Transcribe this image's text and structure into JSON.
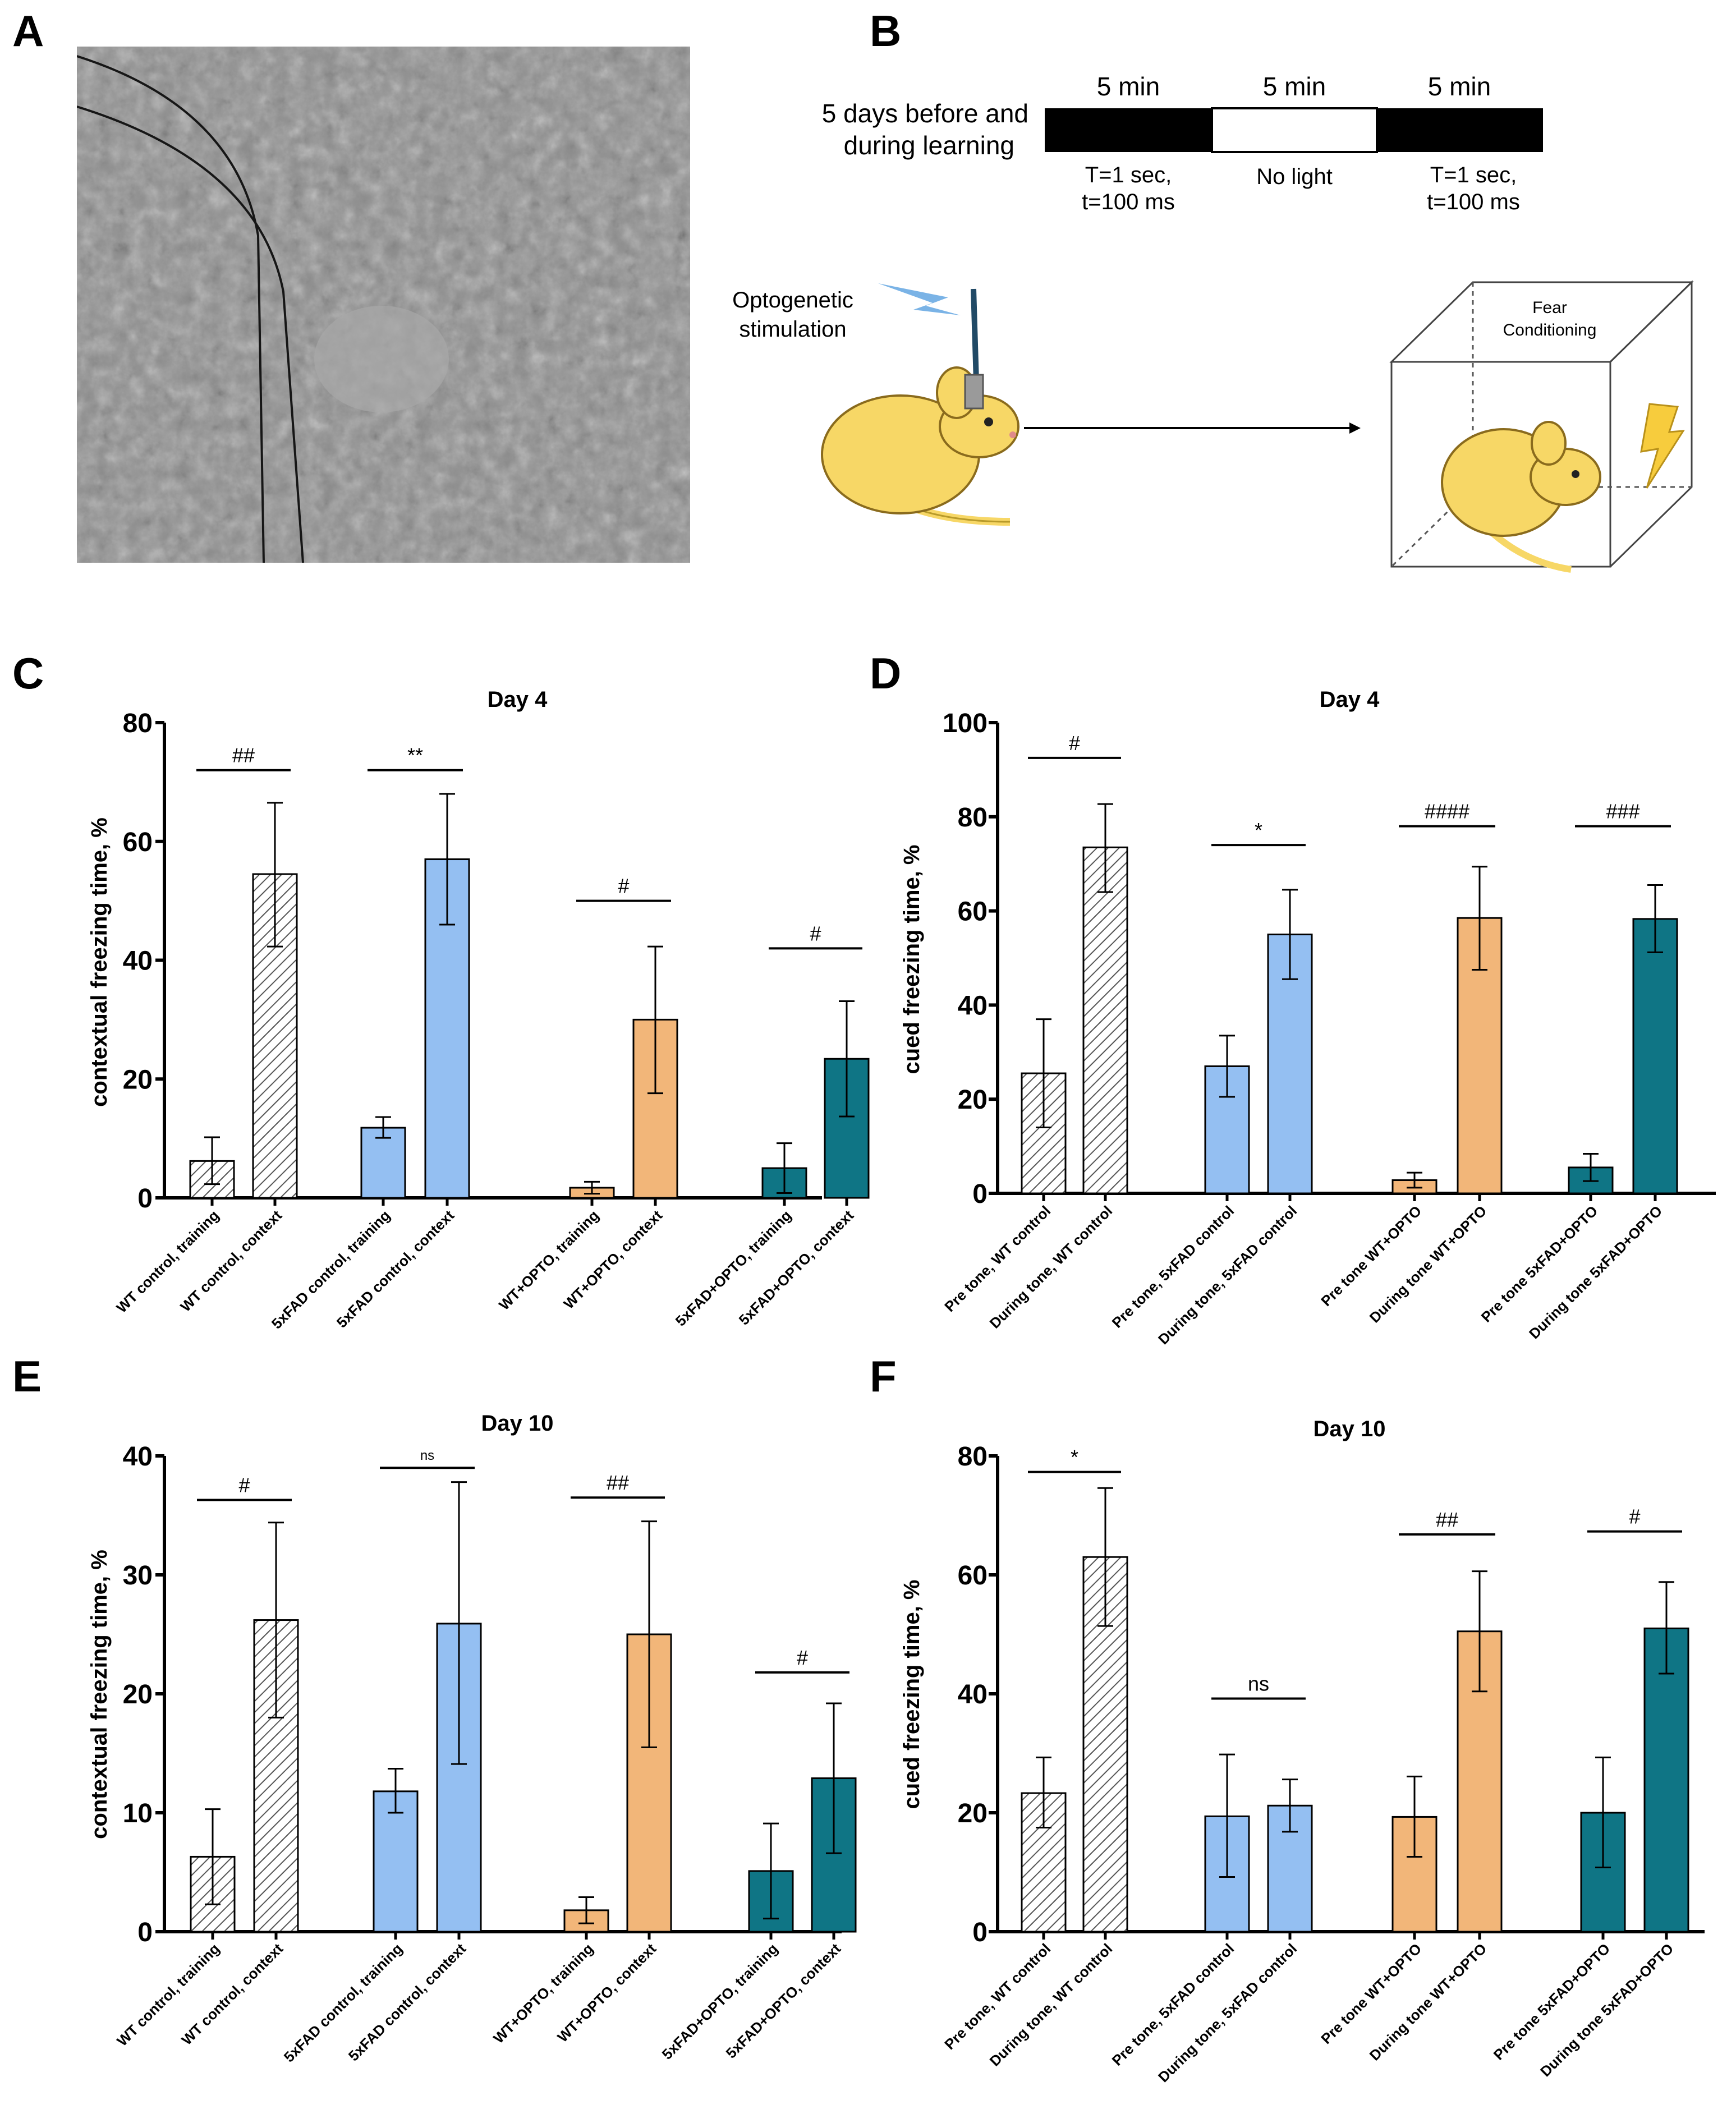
{
  "colors": {
    "wt_control": "#a9a9a9",
    "fad_control": "#94bff2",
    "wt_opto": "#f2b679",
    "fad_opto": "#0f7585",
    "mouse": "#f7d766",
    "fiber": "#214a66",
    "lightning": "#f7cc3d"
  },
  "panel_labels": {
    "a": "A",
    "b": "B",
    "c": "C",
    "d": "D",
    "e": "E",
    "f": "F"
  },
  "panel_b": {
    "timeline": {
      "label_line1": "5 days before and",
      "label_line2": "during learning",
      "segments": [
        {
          "duration": "5 min",
          "state": "on",
          "caption_line1": "T=1 sec,",
          "caption_line2": "t=100 ms"
        },
        {
          "duration": "5 min",
          "state": "off",
          "caption_line1": "No light",
          "caption_line2": ""
        },
        {
          "duration": "5 min",
          "state": "on",
          "caption_line1": "T=1 sec,",
          "caption_line2": "t=100 ms"
        }
      ]
    },
    "stimulation_line1": "Optogenetic",
    "stimulation_line2": "stimulation",
    "box_line1": "Fear",
    "box_line2": "Conditioning",
    "icons": [
      "lightning-icon",
      "mouse-icon",
      "optic-fiber-icon",
      "arrow-icon",
      "cube-icon",
      "shock-icon"
    ]
  },
  "chart_data": [
    {
      "panel": "C",
      "type": "bar",
      "title": "Day 4",
      "ylabel": "contextual freezing time, %",
      "ylim": [
        0,
        80
      ],
      "yticks": [
        0,
        20,
        40,
        60,
        80
      ],
      "categories": [
        "WT control, training",
        "WT control, context",
        "5xFAD control, training",
        "5xFAD control, context",
        "WT+OPTO, training",
        "WT+OPTO, context",
        "5xFAD+OPTO, training",
        "5xFAD+OPTO, context"
      ],
      "values": [
        6.2,
        54.5,
        11.8,
        57,
        1.7,
        30,
        5,
        23.4
      ],
      "error_low": [
        2.3,
        42.3,
        10.1,
        46,
        0.7,
        17.6,
        0.8,
        13.7
      ],
      "error_high": [
        10.2,
        66.5,
        13.6,
        68,
        2.7,
        42.3,
        9.2,
        33.1
      ],
      "groups": [
        "wt_control",
        "wt_control",
        "fad_control",
        "fad_control",
        "wt_opto",
        "wt_opto",
        "fad_opto",
        "fad_opto"
      ],
      "hatched": [
        true,
        true,
        false,
        false,
        false,
        false,
        false,
        false
      ],
      "brackets": [
        {
          "from": 0,
          "to": 1,
          "y": 72,
          "label": "##"
        },
        {
          "from": 2,
          "to": 3,
          "y": 72,
          "label": "**"
        },
        {
          "from": 4,
          "to": 5,
          "y": 50,
          "label": "#"
        },
        {
          "from": 6,
          "to": 7,
          "y": 42,
          "label": "#"
        }
      ]
    },
    {
      "panel": "D",
      "type": "bar",
      "title": "Day 4",
      "ylabel": "cued freezing time, %",
      "ylim": [
        0,
        100
      ],
      "yticks": [
        0,
        20,
        40,
        60,
        80,
        100
      ],
      "categories": [
        "Pre tone, WT control",
        "During tone, WT control",
        "Pre tone, 5xFAD control",
        "During tone, 5xFAD control",
        "Pre tone WT+OPTO",
        "During tone WT+OPTO",
        "Pre tone 5xFAD+OPTO",
        "During tone 5xFAD+OPTO"
      ],
      "values": [
        25.5,
        73.5,
        27,
        55,
        2.8,
        58.5,
        5.5,
        58.3
      ],
      "error_low": [
        14,
        64,
        20.5,
        45.5,
        1.2,
        47.5,
        2.6,
        51.2
      ],
      "error_high": [
        37,
        82.7,
        33.5,
        64.5,
        4.4,
        69.4,
        8.4,
        65.5
      ],
      "groups": [
        "wt_control",
        "wt_control",
        "fad_control",
        "fad_control",
        "wt_opto",
        "wt_opto",
        "fad_opto",
        "fad_opto"
      ],
      "hatched": [
        true,
        true,
        false,
        false,
        false,
        false,
        false,
        false
      ],
      "brackets": [
        {
          "from": 0,
          "to": 1,
          "y": 92.5,
          "label": "#"
        },
        {
          "from": 2,
          "to": 3,
          "y": 74,
          "label": "*"
        },
        {
          "from": 4,
          "to": 5,
          "y": 78,
          "label": "####"
        },
        {
          "from": 6,
          "to": 7,
          "y": 78,
          "label": "###"
        }
      ]
    },
    {
      "panel": "E",
      "type": "bar",
      "title": "Day 10",
      "ylabel": "contextual freezing time, %",
      "ylim": [
        0,
        40
      ],
      "yticks": [
        0,
        10,
        20,
        30,
        40
      ],
      "categories": [
        "WT control, training",
        "WT control, context",
        "5xFAD control, training",
        "5xFAD control, context",
        "WT+OPTO, training",
        "WT+OPTO, context",
        "5xFAD+OPTO, training",
        "5xFAD+OPTO, context"
      ],
      "values": [
        6.3,
        26.2,
        11.8,
        25.9,
        1.8,
        25,
        5.1,
        12.9
      ],
      "error_low": [
        2.3,
        18,
        10,
        14.1,
        0.7,
        15.5,
        1.1,
        6.6
      ],
      "error_high": [
        10.3,
        34.4,
        13.7,
        37.8,
        2.9,
        34.5,
        9.1,
        19.2
      ],
      "groups": [
        "wt_control",
        "wt_control",
        "fad_control",
        "fad_control",
        "wt_opto",
        "wt_opto",
        "fad_opto",
        "fad_opto"
      ],
      "hatched": [
        true,
        true,
        false,
        false,
        false,
        false,
        false,
        false
      ],
      "brackets": [
        {
          "from": 0,
          "to": 1,
          "y": 36.3,
          "label": "#"
        },
        {
          "from": 2,
          "to": 3,
          "y": 39,
          "label": "ns"
        },
        {
          "from": 4,
          "to": 5,
          "y": 36.5,
          "label": "##"
        },
        {
          "from": 6,
          "to": 7,
          "y": 21.8,
          "label": "#"
        }
      ]
    },
    {
      "panel": "F",
      "type": "bar",
      "title": "Day 10",
      "ylabel": "cued freezing time, %",
      "ylim": [
        0,
        80
      ],
      "yticks": [
        0,
        20,
        40,
        60,
        80
      ],
      "categories": [
        "Pre tone, WT control",
        "During tone, WT control",
        "Pre tone, 5xFAD control",
        "During tone, 5xFAD control",
        "Pre tone WT+OPTO",
        "During tone WT+OPTO",
        "Pre tone 5xFAD+OPTO",
        "During tone 5xFAD+OPTO"
      ],
      "values": [
        23.3,
        63,
        19.4,
        21.2,
        19.3,
        50.5,
        20,
        51
      ],
      "error_low": [
        17.5,
        51.4,
        9.2,
        16.8,
        12.6,
        40.4,
        10.8,
        43.4
      ],
      "error_high": [
        29.3,
        74.6,
        29.8,
        25.6,
        26.1,
        60.6,
        29.3,
        58.8
      ],
      "groups": [
        "wt_control",
        "wt_control",
        "fad_control",
        "fad_control",
        "wt_opto",
        "wt_opto",
        "fad_opto",
        "fad_opto"
      ],
      "hatched": [
        true,
        true,
        false,
        false,
        false,
        false,
        false,
        false
      ],
      "brackets": [
        {
          "from": 0,
          "to": 1,
          "y": 77.3,
          "label": "*"
        },
        {
          "from": 2,
          "to": 3,
          "y": 39.2,
          "label": "ns"
        },
        {
          "from": 4,
          "to": 5,
          "y": 66.8,
          "label": "##"
        },
        {
          "from": 6,
          "to": 7,
          "y": 67.3,
          "label": "#"
        }
      ]
    }
  ]
}
